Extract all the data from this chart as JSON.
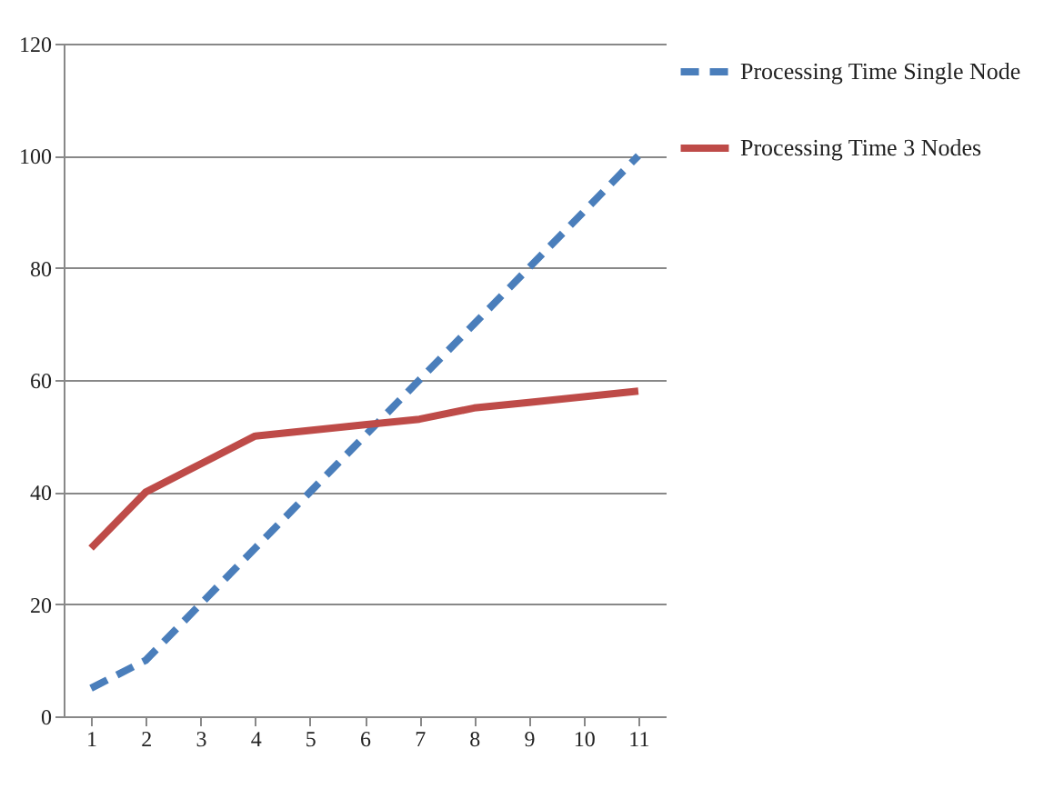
{
  "chart_data": {
    "type": "line",
    "categories": [
      "1",
      "2",
      "3",
      "4",
      "5",
      "6",
      "7",
      "8",
      "9",
      "10",
      "11"
    ],
    "series": [
      {
        "name": "Processing Time Single Node",
        "color": "#4a7ebb",
        "line_style": "dashed",
        "values": [
          5,
          10,
          20,
          30,
          40,
          50,
          60,
          70,
          80,
          90,
          100
        ]
      },
      {
        "name": "Processing Time 3 Nodes",
        "color": "#be4b48",
        "line_style": "solid",
        "values": [
          30,
          40,
          45,
          50,
          51,
          52,
          53,
          55,
          56,
          57,
          58
        ]
      }
    ],
    "ylim": [
      0,
      120
    ],
    "yticks": [
      0,
      20,
      40,
      60,
      80,
      100,
      120
    ],
    "grid": "y",
    "legend": "right",
    "marker": "none"
  }
}
